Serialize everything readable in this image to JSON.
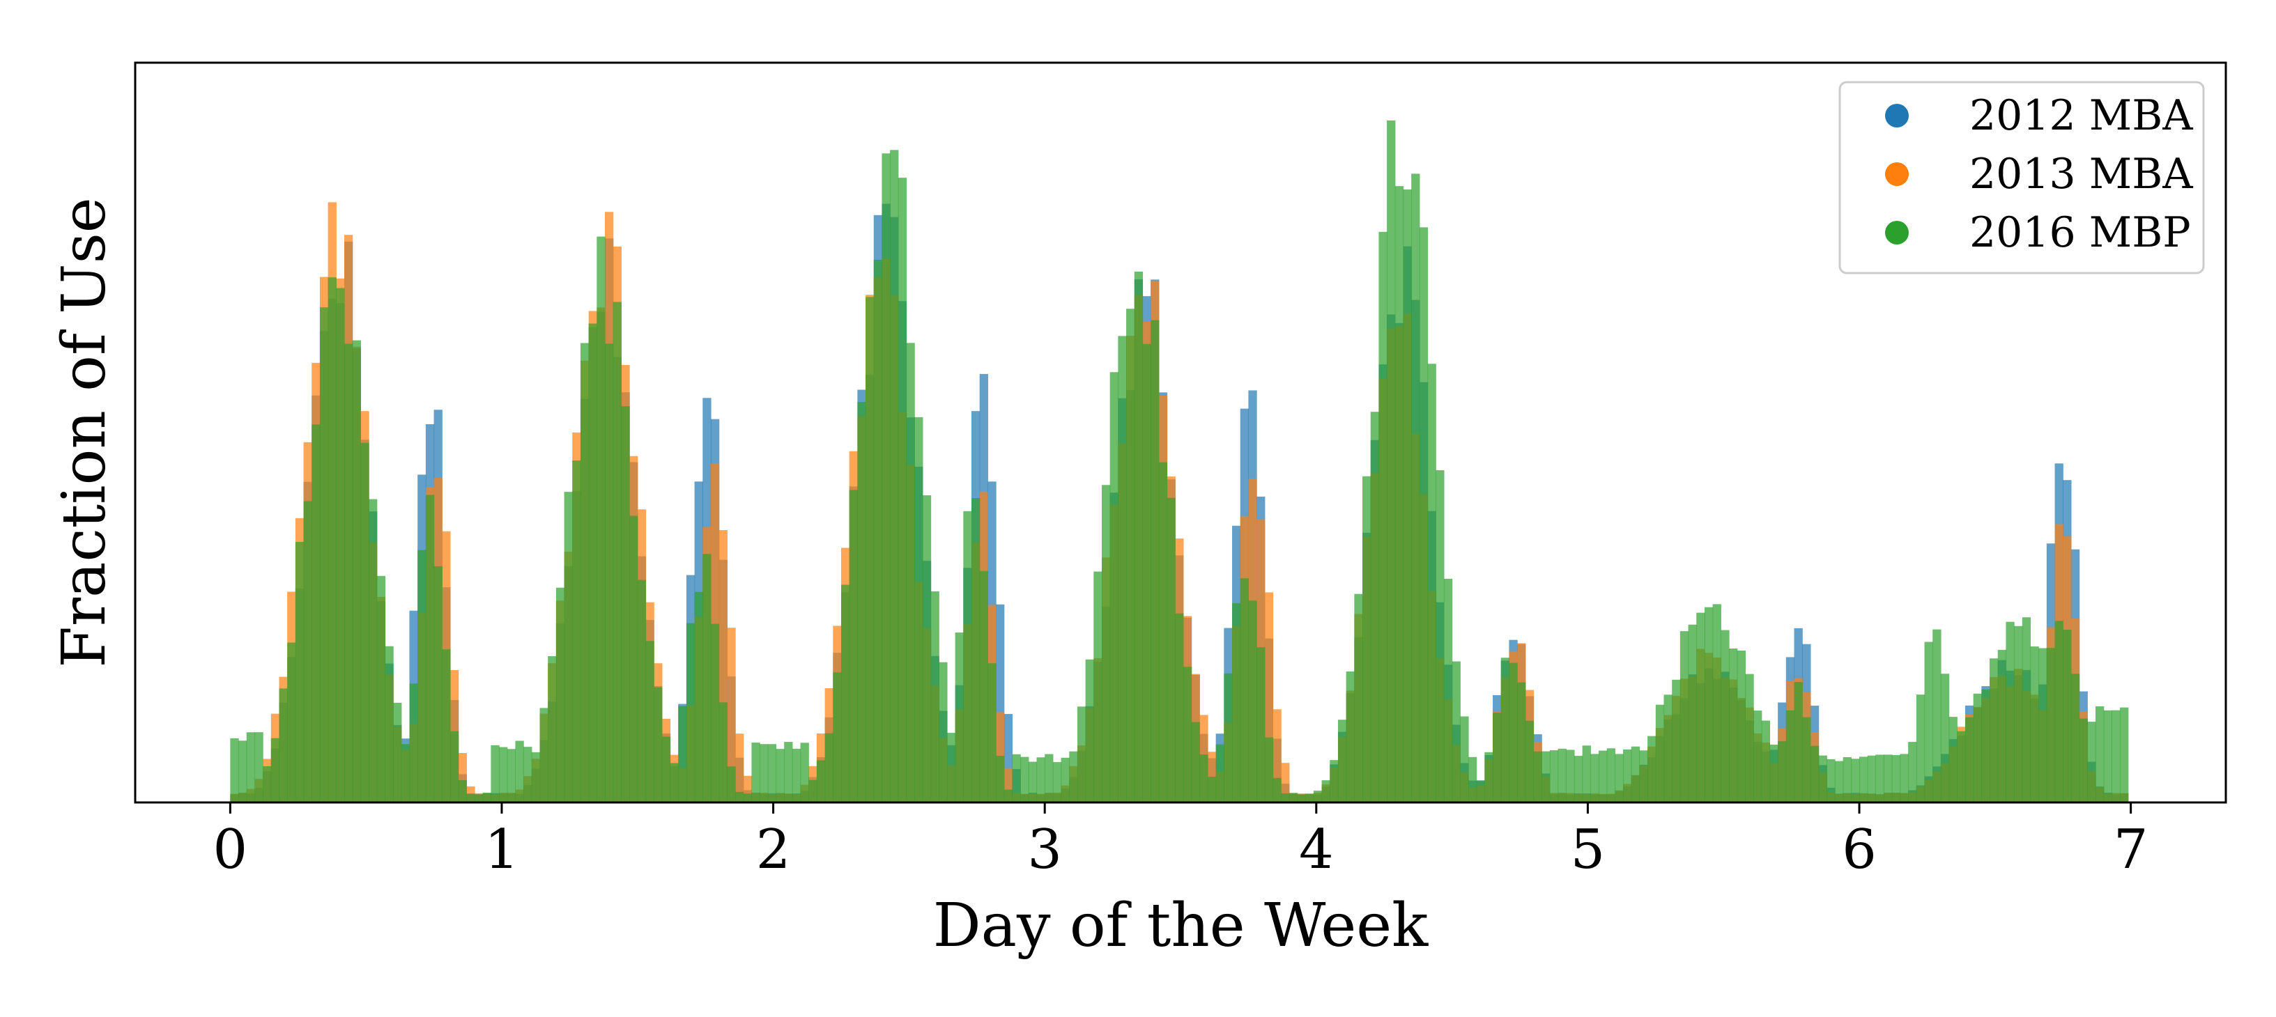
{
  "chart_data": {
    "type": "bar",
    "subtype": "overlaid-histogram",
    "title": "",
    "xlabel": "Day of the Week",
    "ylabel": "Fraction of Use",
    "xlim": [
      -0.35,
      7.35
    ],
    "ylim": [
      0,
      1.0
    ],
    "y_ticks_shown": false,
    "x_ticks": [
      0,
      1,
      2,
      3,
      4,
      5,
      6,
      7
    ],
    "grid": false,
    "legend_position": "top-right",
    "bin_width": 0.03,
    "bars_alpha": 0.7,
    "series": [
      {
        "name": "2012 MBA",
        "color": "#1f77b4",
        "peaks": [
          {
            "center": 0.4,
            "width": 0.11,
            "height": 0.74
          },
          {
            "center": 0.74,
            "width": 0.05,
            "height": 0.57
          },
          {
            "center": 1.38,
            "width": 0.11,
            "height": 0.72
          },
          {
            "center": 1.76,
            "width": 0.055,
            "height": 0.58
          },
          {
            "center": 2.42,
            "width": 0.11,
            "height": 0.76
          },
          {
            "center": 2.77,
            "width": 0.055,
            "height": 0.57
          },
          {
            "center": 3.37,
            "width": 0.11,
            "height": 0.68
          },
          {
            "center": 3.75,
            "width": 0.055,
            "height": 0.55
          },
          {
            "center": 4.31,
            "width": 0.105,
            "height": 0.72
          },
          {
            "center": 4.73,
            "width": 0.06,
            "height": 0.24
          },
          {
            "center": 5.45,
            "width": 0.15,
            "height": 0.18
          },
          {
            "center": 5.77,
            "width": 0.055,
            "height": 0.24
          },
          {
            "center": 6.55,
            "width": 0.16,
            "height": 0.18
          },
          {
            "center": 6.75,
            "width": 0.05,
            "height": 0.48
          }
        ]
      },
      {
        "name": "2013 MBA",
        "color": "#ff7f0e",
        "peaks": [
          {
            "center": 0.39,
            "width": 0.115,
            "height": 0.76
          },
          {
            "center": 0.76,
            "width": 0.05,
            "height": 0.45
          },
          {
            "center": 1.38,
            "width": 0.115,
            "height": 0.74
          },
          {
            "center": 1.78,
            "width": 0.055,
            "height": 0.45
          },
          {
            "center": 2.4,
            "width": 0.11,
            "height": 0.7
          },
          {
            "center": 2.76,
            "width": 0.05,
            "height": 0.4
          },
          {
            "center": 3.37,
            "width": 0.115,
            "height": 0.68
          },
          {
            "center": 3.77,
            "width": 0.055,
            "height": 0.44
          },
          {
            "center": 4.3,
            "width": 0.105,
            "height": 0.64
          },
          {
            "center": 4.73,
            "width": 0.06,
            "height": 0.22
          },
          {
            "center": 5.45,
            "width": 0.15,
            "height": 0.2
          },
          {
            "center": 5.77,
            "width": 0.055,
            "height": 0.18
          },
          {
            "center": 6.55,
            "width": 0.16,
            "height": 0.17
          },
          {
            "center": 6.75,
            "width": 0.05,
            "height": 0.36
          }
        ]
      },
      {
        "name": "2016 MBP",
        "color": "#2ca02c",
        "peaks": [
          {
            "center": 0.4,
            "width": 0.115,
            "height": 0.72
          },
          {
            "center": 0.74,
            "width": 0.05,
            "height": 0.4
          },
          {
            "center": 1.37,
            "width": 0.115,
            "height": 0.7
          },
          {
            "center": 1.74,
            "width": 0.055,
            "height": 0.32
          },
          {
            "center": 2.43,
            "width": 0.11,
            "height": 0.84
          },
          {
            "center": 2.74,
            "width": 0.05,
            "height": 0.41
          },
          {
            "center": 3.34,
            "width": 0.11,
            "height": 0.72
          },
          {
            "center": 3.74,
            "width": 0.055,
            "height": 0.32
          },
          {
            "center": 4.32,
            "width": 0.11,
            "height": 0.92
          },
          {
            "center": 4.72,
            "width": 0.06,
            "height": 0.2
          },
          {
            "center": 5.45,
            "width": 0.15,
            "height": 0.26
          },
          {
            "center": 5.77,
            "width": 0.055,
            "height": 0.15
          },
          {
            "center": 6.28,
            "width": 0.06,
            "height": 0.22
          },
          {
            "center": 6.6,
            "width": 0.16,
            "height": 0.24
          },
          {
            "center": 6.75,
            "width": 0.05,
            "height": 0.26
          }
        ],
        "baseline_plateaus": [
          {
            "start": 0.0,
            "end": 0.12,
            "height": 0.09
          },
          {
            "start": 0.96,
            "end": 1.12,
            "height": 0.08
          },
          {
            "start": 1.92,
            "end": 2.12,
            "height": 0.08
          },
          {
            "start": 2.88,
            "end": 3.1,
            "height": 0.06
          },
          {
            "start": 4.75,
            "end": 5.2,
            "height": 0.07
          },
          {
            "start": 5.85,
            "end": 6.3,
            "height": 0.06
          },
          {
            "start": 6.8,
            "end": 7.0,
            "height": 0.12
          }
        ]
      }
    ]
  }
}
